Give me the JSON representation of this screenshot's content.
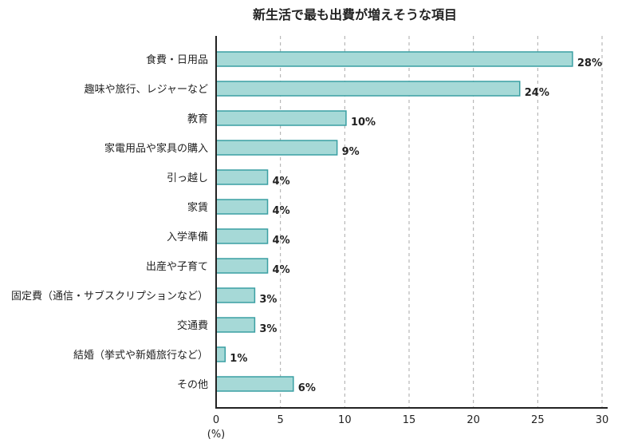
{
  "chart_data": {
    "type": "bar",
    "orientation": "horizontal",
    "title": "新生活で最も出費が増えそうな項目",
    "xlabel": "(%)",
    "ylabel": "",
    "xlim": [
      0,
      30
    ],
    "xticks": [
      "0",
      "5",
      "10",
      "15",
      "20",
      "25",
      "30"
    ],
    "grid": "vertical-dashed",
    "categories": [
      "食費・日用品",
      "趣味や旅行、レジャーなど",
      "教育",
      "家電用品や家具の購入",
      "引っ越し",
      "家賃",
      "入学準備",
      "出産や子育て",
      "固定費（通信・サブスクリプションなど）",
      "交通費",
      "結婚（挙式や新婚旅行など）",
      "その他"
    ],
    "values": [
      27.7,
      23.6,
      10.1,
      9.4,
      4.0,
      4.0,
      4.0,
      4.0,
      3.0,
      3.0,
      0.7,
      6.0
    ],
    "data_labels": [
      "28%",
      "24%",
      "10%",
      "9%",
      "4%",
      "4%",
      "4%",
      "4%",
      "3%",
      "3%",
      "1%",
      "6%"
    ],
    "colors": {
      "bar_fill": "#a6d9d7",
      "bar_stroke": "#3a9fa3",
      "axis": "#222222",
      "grid": "#aaaaaa"
    }
  }
}
